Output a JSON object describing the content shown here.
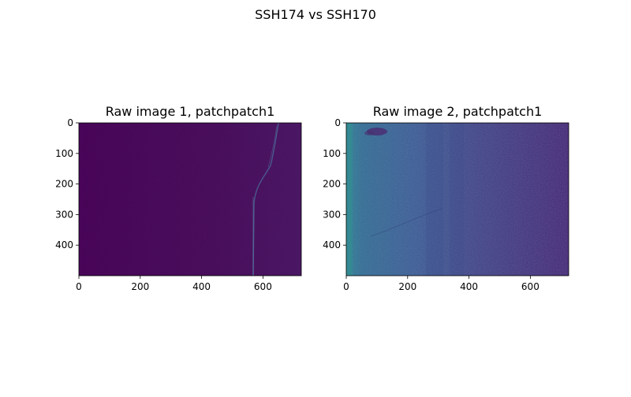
{
  "figure": {
    "suptitle": "SSH174 vs SSH170"
  },
  "chart_data": [
    {
      "type": "heatmap",
      "title": "Raw image 1, patchpatch1",
      "colormap": "viridis",
      "xlim": [
        0,
        725
      ],
      "ylim": [
        500,
        0
      ],
      "xticks": [
        0,
        200,
        400,
        600
      ],
      "yticks": [
        0,
        100,
        200,
        300,
        400
      ],
      "xlabel": "",
      "ylabel": "",
      "grid": false
    },
    {
      "type": "heatmap",
      "title": "Raw image 2, patchpatch1",
      "colormap": "viridis",
      "xlim": [
        0,
        725
      ],
      "ylim": [
        500,
        0
      ],
      "xticks": [
        0,
        200,
        400,
        600
      ],
      "yticks": [
        0,
        100,
        200,
        300,
        400
      ],
      "xlabel": "",
      "ylabel": "",
      "grid": false
    }
  ],
  "colors": {
    "image1_background": "#440a57",
    "image1_streak": "#4a6a99",
    "image2_left_edge": "#2a7d8e",
    "image2_mid": "#3b5790",
    "image2_right": "#461e6e"
  }
}
